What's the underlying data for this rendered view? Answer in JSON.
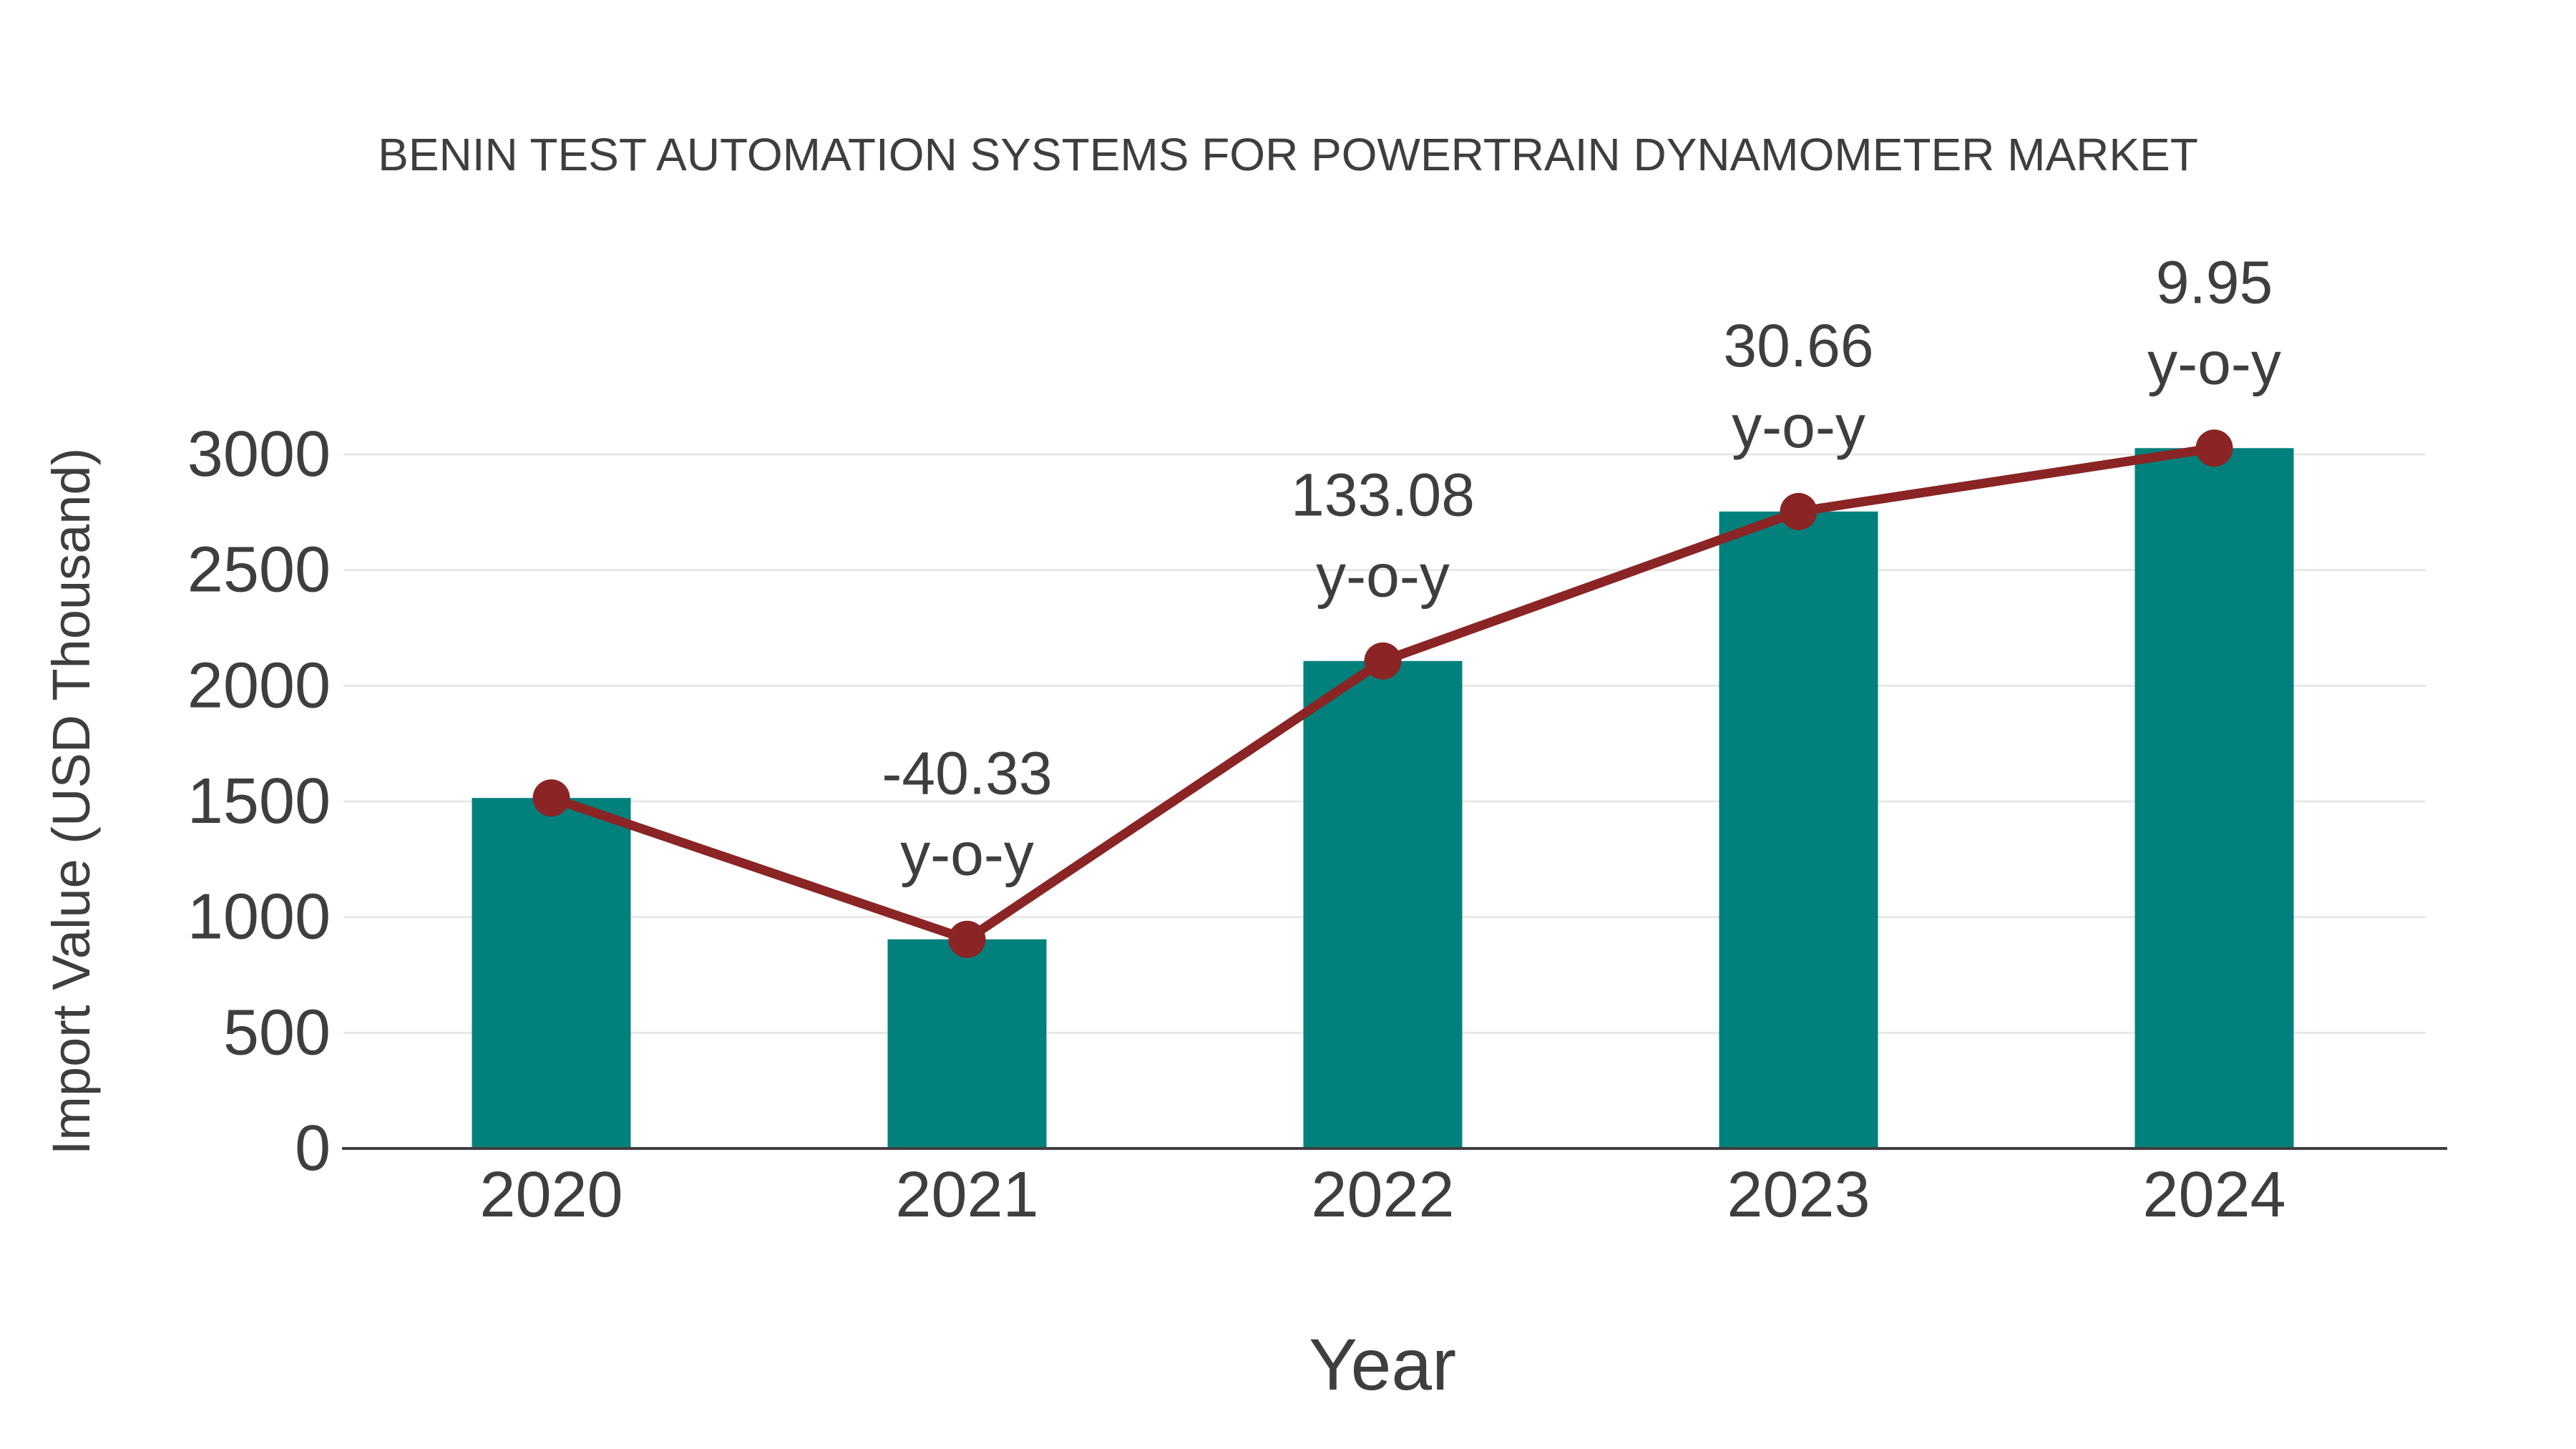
{
  "title": "BENIN TEST AUTOMATION SYSTEMS FOR POWERTRAIN DYNAMOMETER MARKET",
  "colors": {
    "bar": "#02807C",
    "line": "#8B2424",
    "marker": "#8B2424",
    "text": "#3E3E3E",
    "grid": "#E8E8E8",
    "axis": "#3F3F3F",
    "background": "#FFFFFF"
  },
  "chart_data": {
    "type": "combo-bar-line",
    "title": "BENIN TEST AUTOMATION SYSTEMS FOR POWERTRAIN DYNAMOMETER MARKET",
    "xlabel": "Year",
    "ylabel": "Import Value (USD Thousand)",
    "categories": [
      "2020",
      "2021",
      "2022",
      "2023",
      "2024"
    ],
    "bar_values": [
      1515,
      904,
      2107,
      2753,
      3027
    ],
    "line_values": [
      1515,
      904,
      2107,
      2753,
      3027
    ],
    "yticks": [
      0,
      500,
      1000,
      1500,
      2000,
      2500,
      3000
    ],
    "ylim": [
      0,
      3000
    ],
    "grid": true,
    "legend": false,
    "annotations": [
      {
        "category": "2021",
        "value_text": "-40.33",
        "label_text": "y-o-y"
      },
      {
        "category": "2022",
        "value_text": "133.08",
        "label_text": "y-o-y"
      },
      {
        "category": "2023",
        "value_text": "30.66",
        "label_text": "y-o-y"
      },
      {
        "category": "2024",
        "value_text": "9.95",
        "label_text": "y-o-y"
      }
    ]
  }
}
